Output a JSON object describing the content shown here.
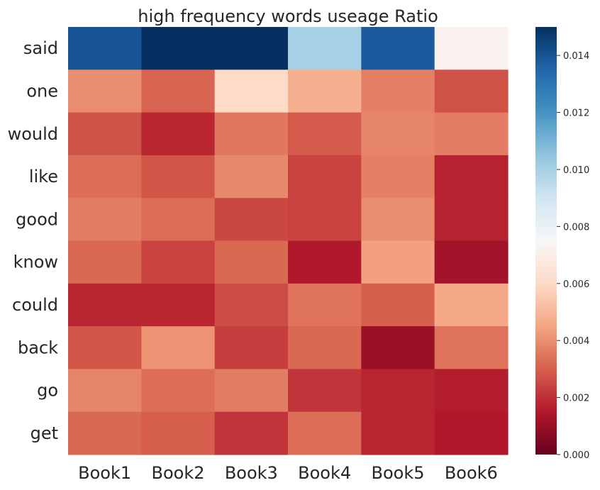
{
  "chart_data": {
    "type": "heatmap",
    "title": "high frequency words useage Ratio",
    "x_categories": [
      "Book1",
      "Book2",
      "Book3",
      "Book4",
      "Book5",
      "Book6"
    ],
    "y_categories": [
      "said",
      "one",
      "would",
      "like",
      "good",
      "know",
      "could",
      "back",
      "go",
      "get"
    ],
    "values": [
      [
        0.014,
        0.015,
        0.015,
        0.01,
        0.0138,
        0.0072
      ],
      [
        0.004,
        0.0031,
        0.006,
        0.0048,
        0.0037,
        0.0027
      ],
      [
        0.0027,
        0.0018,
        0.0035,
        0.0029,
        0.0038,
        0.0036
      ],
      [
        0.0033,
        0.0028,
        0.0039,
        0.0024,
        0.0037,
        0.0017
      ],
      [
        0.0036,
        0.0033,
        0.0025,
        0.0024,
        0.004,
        0.0017
      ],
      [
        0.0032,
        0.0024,
        0.0032,
        0.0015,
        0.0044,
        0.0012
      ],
      [
        0.0018,
        0.0018,
        0.0026,
        0.0034,
        0.003,
        0.0046
      ],
      [
        0.0028,
        0.0041,
        0.0023,
        0.0032,
        0.001,
        0.0034
      ],
      [
        0.0038,
        0.0033,
        0.0036,
        0.0021,
        0.0018,
        0.0016
      ],
      [
        0.0032,
        0.003,
        0.0021,
        0.0033,
        0.0018,
        0.0015
      ]
    ],
    "colorbar": {
      "min": 0.0,
      "max": 0.015,
      "ticks": [
        0.0,
        0.002,
        0.004,
        0.006,
        0.008,
        0.01,
        0.012,
        0.014
      ],
      "tick_labels": [
        "0.000",
        "0.002",
        "0.004",
        "0.006",
        "0.008",
        "0.010",
        "0.012",
        "0.014"
      ],
      "colormap": "RdBu",
      "color_stops": [
        "#67001f",
        "#b2182b",
        "#d6604d",
        "#f4a582",
        "#fddbc7",
        "#f7f7f7",
        "#d1e5f0",
        "#92c5de",
        "#4393c3",
        "#2166ac",
        "#053061"
      ]
    }
  }
}
